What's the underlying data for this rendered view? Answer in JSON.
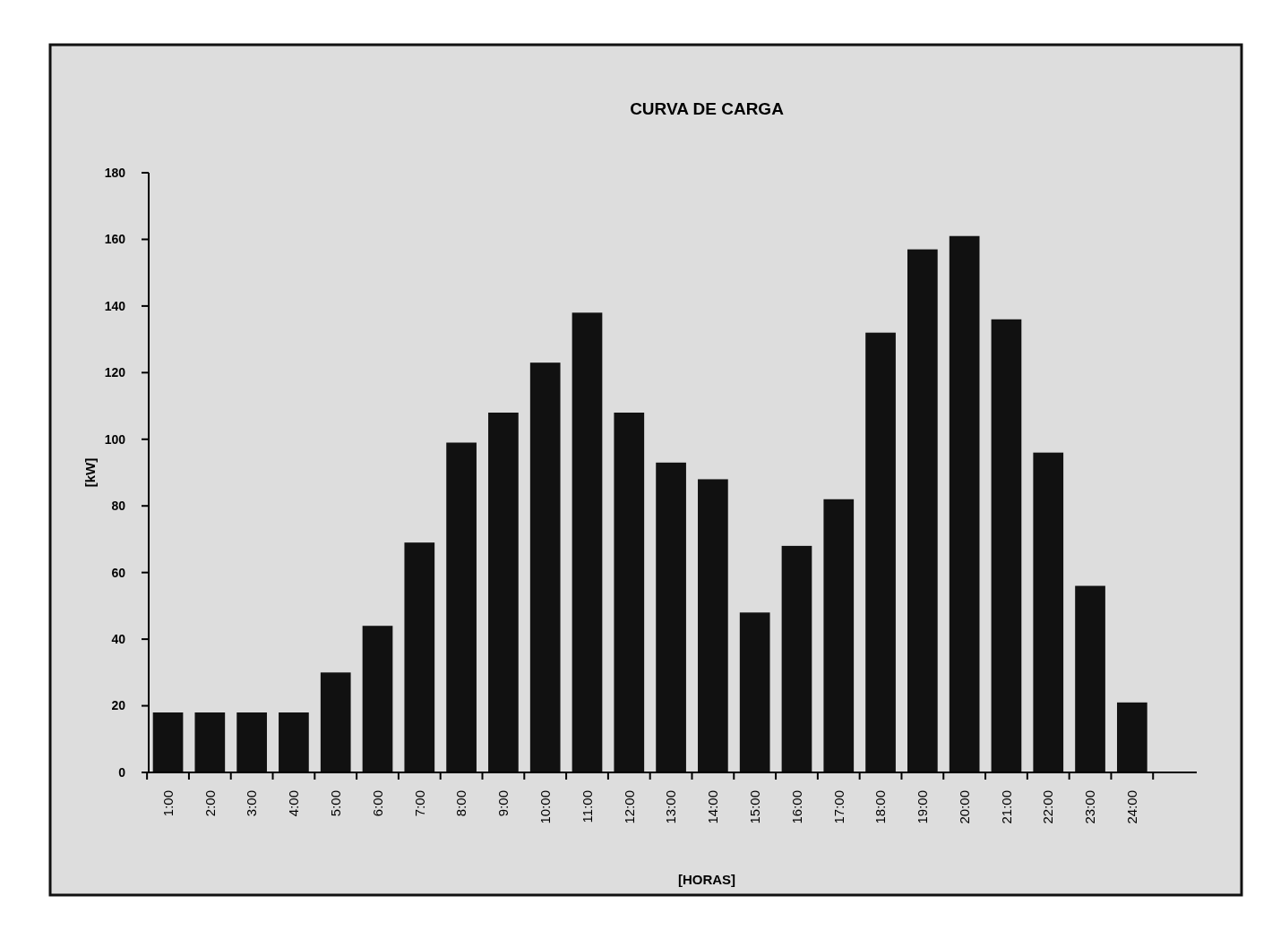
{
  "chart_data": {
    "type": "bar",
    "title": "CURVA DE CARGA",
    "xlabel": "[HORAS]",
    "ylabel": "[kW]",
    "categories": [
      "1:00",
      "2:00",
      "3:00",
      "4:00",
      "5:00",
      "6:00",
      "7:00",
      "8:00",
      "9:00",
      "10:00",
      "11:00",
      "12:00",
      "13:00",
      "14:00",
      "15:00",
      "16:00",
      "17:00",
      "18:00",
      "19:00",
      "20:00",
      "21:00",
      "22:00",
      "23:00",
      "24:00"
    ],
    "values": [
      18,
      18,
      18,
      18,
      30,
      44,
      69,
      99,
      108,
      123,
      138,
      108,
      93,
      88,
      48,
      68,
      82,
      132,
      157,
      161,
      136,
      96,
      56,
      21
    ],
    "color": "#111111",
    "ylim": [
      0,
      180
    ],
    "yticks": [
      0,
      20,
      40,
      60,
      80,
      100,
      120,
      140,
      160,
      180
    ]
  }
}
